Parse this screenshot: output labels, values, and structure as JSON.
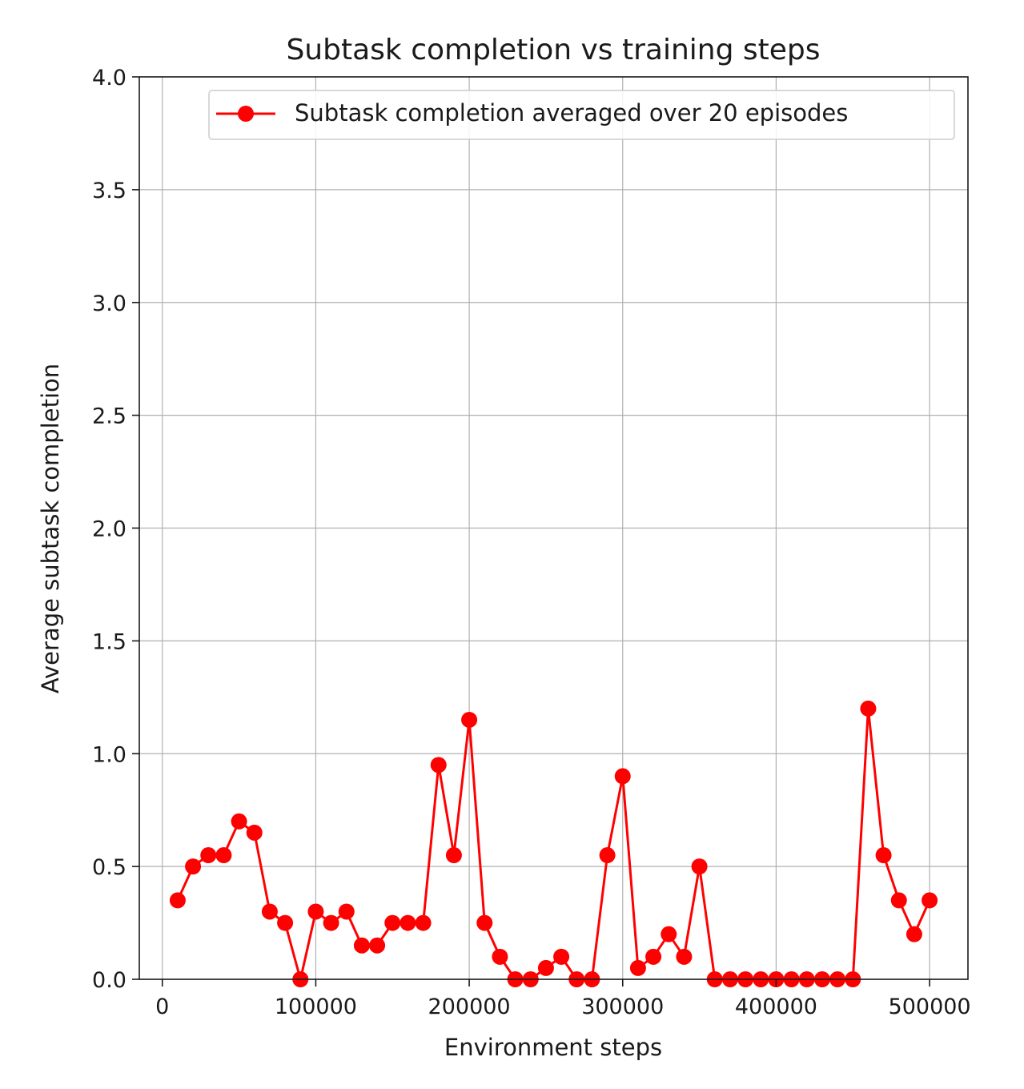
{
  "chart_data": {
    "type": "line",
    "title": "Subtask completion vs training steps",
    "xlabel": "Environment steps",
    "ylabel": "Average subtask completion",
    "xlim": [
      -15000,
      525000
    ],
    "ylim": [
      0,
      4.0
    ],
    "grid": true,
    "legend_position": "top-right",
    "x_ticks": [
      0,
      100000,
      200000,
      300000,
      400000,
      500000
    ],
    "x_tick_labels": [
      "0",
      "100000",
      "200000",
      "300000",
      "400000",
      "500000"
    ],
    "y_ticks": [
      0,
      0.5,
      1.0,
      1.5,
      2.0,
      2.5,
      3.0,
      3.5,
      4.0
    ],
    "y_tick_labels": [
      "0.0",
      "0.5",
      "1.0",
      "1.5",
      "2.0",
      "2.5",
      "3.0",
      "3.5",
      "4.0"
    ],
    "series": [
      {
        "name": "Subtask completion averaged over 20 episodes",
        "color": "#ff0000",
        "marker": "circle",
        "x": [
          10000,
          20000,
          30000,
          40000,
          50000,
          60000,
          70000,
          80000,
          90000,
          100000,
          110000,
          120000,
          130000,
          140000,
          150000,
          160000,
          170000,
          180000,
          190000,
          200000,
          210000,
          220000,
          230000,
          240000,
          250000,
          260000,
          270000,
          280000,
          290000,
          300000,
          310000,
          320000,
          330000,
          340000,
          350000,
          360000,
          370000,
          380000,
          390000,
          400000,
          410000,
          420000,
          430000,
          440000,
          450000,
          460000,
          470000,
          480000,
          490000,
          500000
        ],
        "values": [
          0.35,
          0.5,
          0.55,
          0.55,
          0.7,
          0.65,
          0.3,
          0.25,
          0.0,
          0.3,
          0.25,
          0.3,
          0.15,
          0.15,
          0.25,
          0.25,
          0.25,
          0.95,
          0.55,
          1.15,
          0.25,
          0.1,
          0.0,
          0.0,
          0.05,
          0.1,
          0.0,
          0.0,
          0.55,
          0.9,
          0.05,
          0.1,
          0.2,
          0.1,
          0.5,
          0.0,
          0.0,
          0.0,
          0.0,
          0.0,
          0.0,
          0.0,
          0.0,
          0.0,
          0.0,
          1.2,
          0.55,
          0.35,
          0.2,
          0.35
        ]
      }
    ]
  }
}
